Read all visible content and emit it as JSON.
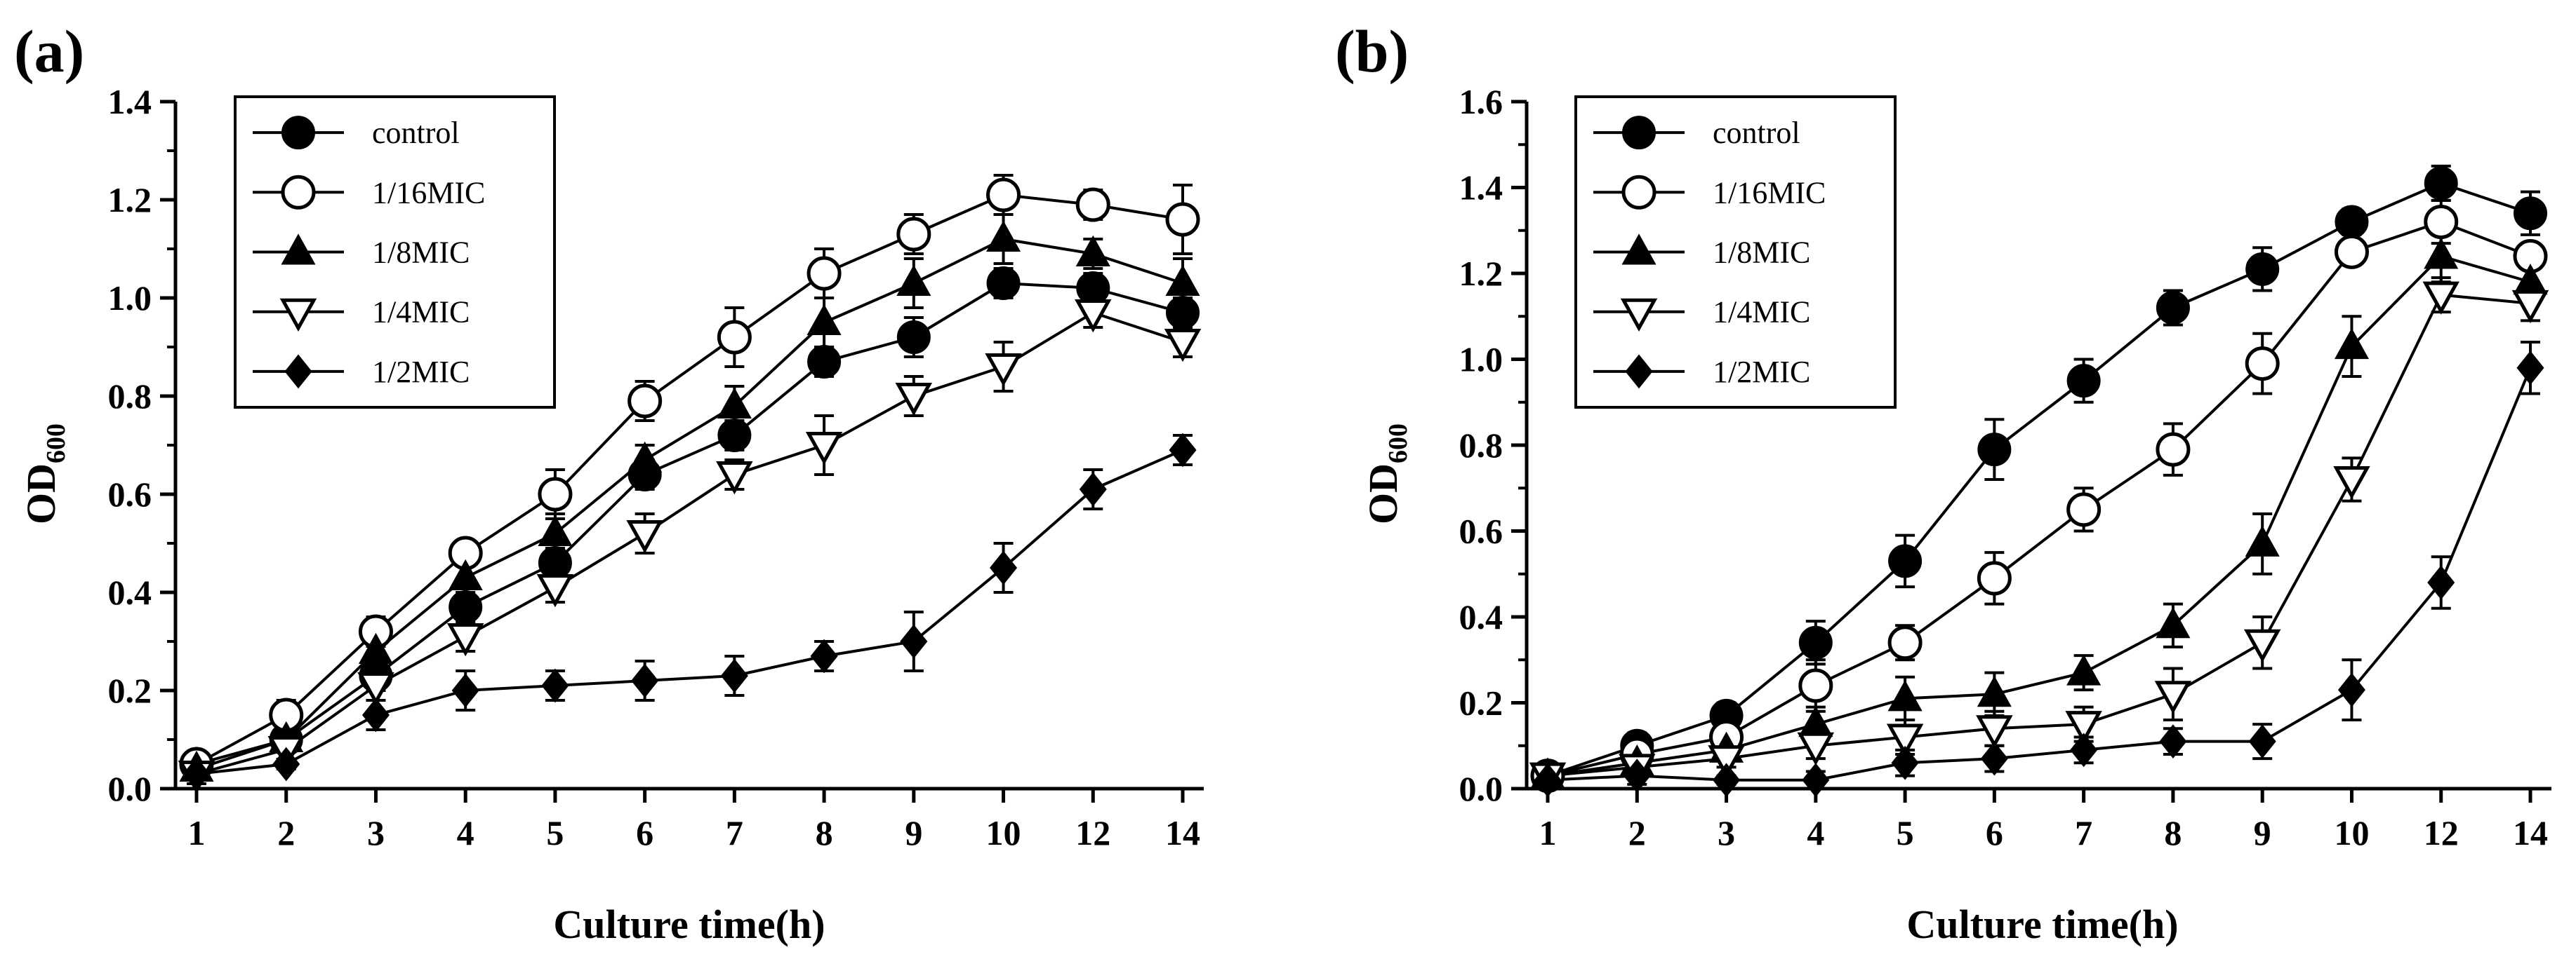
{
  "chart_data": [
    {
      "type": "line",
      "panel_label": "(a)",
      "xlabel": "Culture time(h)",
      "ylabel": "OD",
      "ylabel_sub": "600",
      "categories": [
        "1",
        "2",
        "3",
        "4",
        "5",
        "6",
        "7",
        "8",
        "9",
        "10",
        "12",
        "14"
      ],
      "ylim": [
        0,
        1.4
      ],
      "yticks": [
        "0.0",
        "0.2",
        "0.4",
        "0.6",
        "0.8",
        "1.0",
        "1.2",
        "1.4"
      ],
      "legend_position": "top-left",
      "series": [
        {
          "name": "control",
          "marker": "filled-circle",
          "values": [
            0.05,
            0.1,
            0.23,
            0.37,
            0.46,
            0.64,
            0.72,
            0.87,
            0.92,
            1.03,
            1.02,
            0.97
          ],
          "errors": [
            0.02,
            0.02,
            0.03,
            0.02,
            0.03,
            0.03,
            0.03,
            0.03,
            0.04,
            0.03,
            0.03,
            0.03
          ]
        },
        {
          "name": "1/16MIC",
          "marker": "open-circle",
          "values": [
            0.05,
            0.15,
            0.32,
            0.48,
            0.6,
            0.79,
            0.92,
            1.05,
            1.13,
            1.21,
            1.19,
            1.16
          ],
          "errors": [
            0.02,
            0.03,
            0.03,
            0.02,
            0.05,
            0.04,
            0.06,
            0.05,
            0.04,
            0.04,
            0.03,
            0.07
          ]
        },
        {
          "name": "1/8MIC",
          "marker": "filled-triangle",
          "values": [
            0.04,
            0.1,
            0.28,
            0.43,
            0.52,
            0.67,
            0.78,
            0.95,
            1.03,
            1.12,
            1.09,
            1.03
          ],
          "errors": [
            0.02,
            0.02,
            0.03,
            0.03,
            0.04,
            0.03,
            0.04,
            0.05,
            0.05,
            0.05,
            0.03,
            0.05
          ]
        },
        {
          "name": "1/4MIC",
          "marker": "open-triangle-down",
          "values": [
            0.03,
            0.08,
            0.21,
            0.31,
            0.41,
            0.52,
            0.64,
            0.7,
            0.8,
            0.86,
            0.97,
            0.91
          ],
          "errors": [
            0.02,
            0.02,
            0.03,
            0.03,
            0.03,
            0.04,
            0.03,
            0.06,
            0.04,
            0.05,
            0.03,
            0.03
          ]
        },
        {
          "name": "1/2MIC",
          "marker": "filled-diamond",
          "values": [
            0.03,
            0.05,
            0.15,
            0.2,
            0.21,
            0.22,
            0.23,
            0.27,
            0.3,
            0.45,
            0.61,
            0.69
          ],
          "errors": [
            0.01,
            0.01,
            0.03,
            0.04,
            0.03,
            0.04,
            0.04,
            0.03,
            0.06,
            0.05,
            0.04,
            0.03
          ]
        }
      ]
    },
    {
      "type": "line",
      "panel_label": "(b)",
      "xlabel": "Culture time(h)",
      "ylabel": "OD",
      "ylabel_sub": "600",
      "categories": [
        "1",
        "2",
        "3",
        "4",
        "5",
        "6",
        "7",
        "8",
        "9",
        "10",
        "12",
        "14"
      ],
      "ylim": [
        0,
        1.6
      ],
      "yticks": [
        "0.0",
        "0.2",
        "0.4",
        "0.6",
        "0.8",
        "1.0",
        "1.2",
        "1.4",
        "1.6"
      ],
      "legend_position": "top-left",
      "series": [
        {
          "name": "control",
          "marker": "filled-circle",
          "values": [
            0.03,
            0.1,
            0.17,
            0.34,
            0.53,
            0.79,
            0.95,
            1.12,
            1.21,
            1.32,
            1.41,
            1.34
          ],
          "errors": [
            0.02,
            0.03,
            0.03,
            0.05,
            0.06,
            0.07,
            0.05,
            0.04,
            0.05,
            0.03,
            0.04,
            0.05
          ]
        },
        {
          "name": "1/16MIC",
          "marker": "open-circle",
          "values": [
            0.03,
            0.08,
            0.12,
            0.24,
            0.34,
            0.49,
            0.65,
            0.79,
            0.99,
            1.25,
            1.32,
            1.24
          ],
          "errors": [
            0.02,
            0.02,
            0.03,
            0.06,
            0.04,
            0.06,
            0.05,
            0.06,
            0.07,
            0.03,
            0.05,
            0.03
          ]
        },
        {
          "name": "1/8MIC",
          "marker": "filled-triangle",
          "values": [
            0.03,
            0.06,
            0.09,
            0.15,
            0.21,
            0.22,
            0.27,
            0.38,
            0.57,
            1.03,
            1.24,
            1.18
          ],
          "errors": [
            0.02,
            0.02,
            0.02,
            0.04,
            0.05,
            0.05,
            0.04,
            0.05,
            0.07,
            0.07,
            0.06,
            0.04
          ]
        },
        {
          "name": "1/4MIC",
          "marker": "open-triangle-down",
          "values": [
            0.03,
            0.05,
            0.07,
            0.1,
            0.12,
            0.14,
            0.15,
            0.22,
            0.34,
            0.72,
            1.15,
            1.13
          ],
          "errors": [
            0.02,
            0.02,
            0.02,
            0.03,
            0.04,
            0.04,
            0.04,
            0.06,
            0.06,
            0.05,
            0.04,
            0.04
          ]
        },
        {
          "name": "1/2MIC",
          "marker": "filled-diamond",
          "values": [
            0.02,
            0.03,
            0.02,
            0.02,
            0.06,
            0.07,
            0.09,
            0.11,
            0.11,
            0.23,
            0.48,
            0.98
          ],
          "errors": [
            0.01,
            0.02,
            0.01,
            0.02,
            0.03,
            0.03,
            0.03,
            0.03,
            0.04,
            0.07,
            0.06,
            0.06
          ]
        }
      ]
    }
  ]
}
